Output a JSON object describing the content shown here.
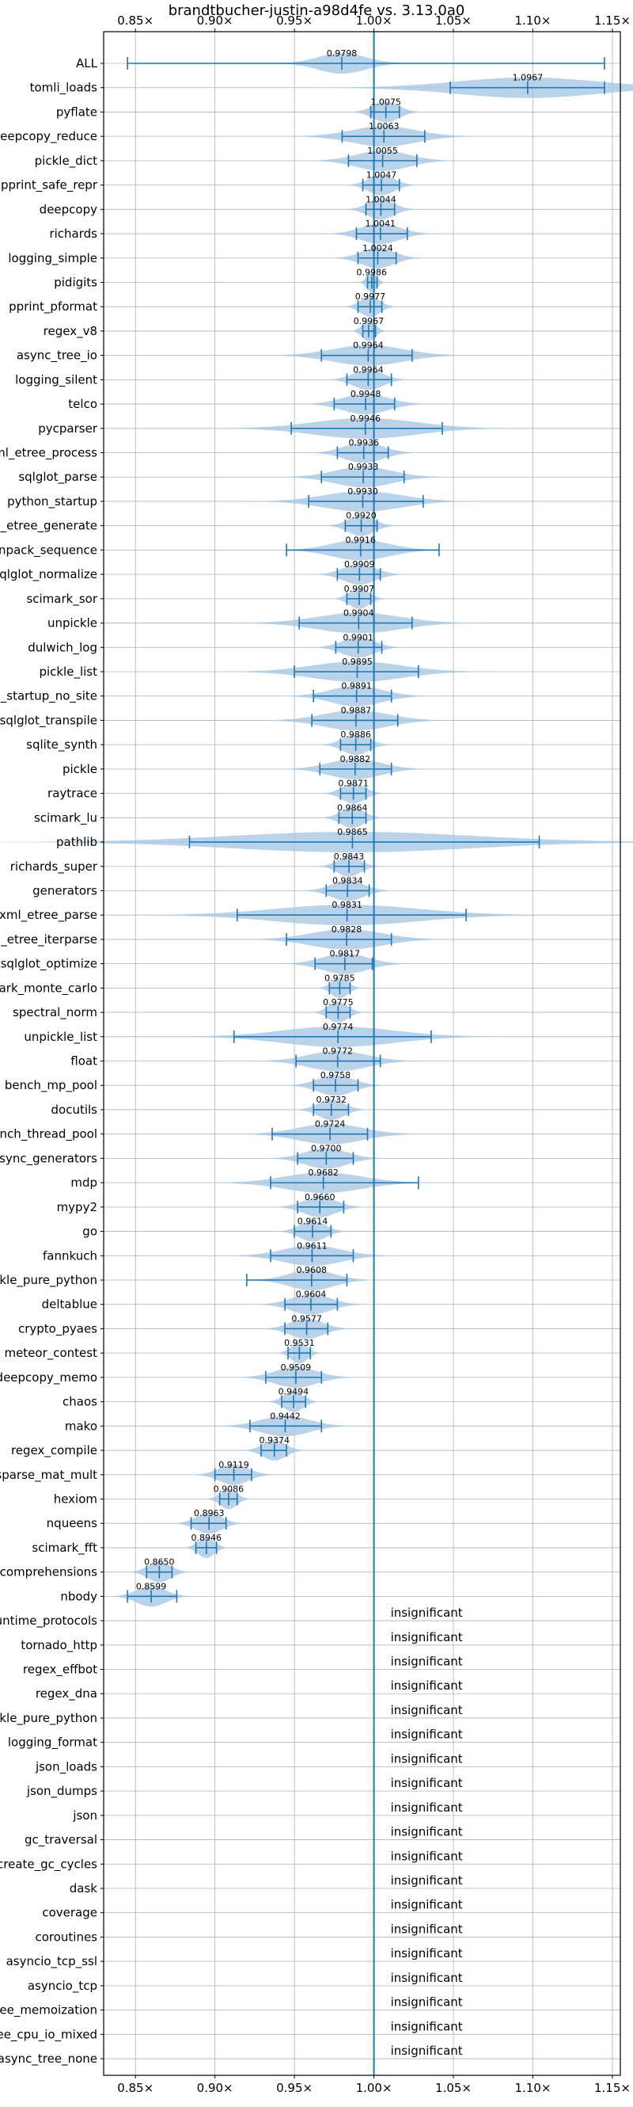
{
  "chart_data": {
    "type": "violin",
    "title": "brandtbucher-justin-a98d4fe vs. 3.13.0a0",
    "xlim": [
      0.83,
      1.155
    ],
    "x_ticks": [
      0.85,
      0.9,
      0.95,
      1.0,
      1.05,
      1.1,
      1.15
    ],
    "x_tick_labels": [
      "0.85×",
      "0.90×",
      "0.95×",
      "1.00×",
      "1.05×",
      "1.10×",
      "1.15×"
    ],
    "reference_line": 1.0,
    "grid": true,
    "colors": {
      "line": "#1f77b4",
      "violin": "#a9c8e4",
      "grid": "#b0b0b0"
    },
    "benchmarks": [
      {
        "name": "ALL",
        "mean": 0.9798,
        "min": 0.845,
        "max": 1.145,
        "spread": 0.015
      },
      {
        "name": "tomli_loads",
        "mean": 1.0967,
        "min": 1.048,
        "max": 1.145,
        "spread": 0.044
      },
      {
        "name": "pyflate",
        "mean": 1.0075,
        "min": 0.998,
        "max": 1.016,
        "spread": 0.008
      },
      {
        "name": "deepcopy_reduce",
        "mean": 1.0063,
        "min": 0.98,
        "max": 1.032,
        "spread": 0.02
      },
      {
        "name": "pickle_dict",
        "mean": 1.0055,
        "min": 0.984,
        "max": 1.027,
        "spread": 0.016
      },
      {
        "name": "pprint_safe_repr",
        "mean": 1.0047,
        "min": 0.993,
        "max": 1.016,
        "spread": 0.008
      },
      {
        "name": "deepcopy",
        "mean": 1.0044,
        "min": 0.995,
        "max": 1.013,
        "spread": 0.008
      },
      {
        "name": "richards",
        "mean": 1.0041,
        "min": 0.989,
        "max": 1.021,
        "spread": 0.012
      },
      {
        "name": "logging_simple",
        "mean": 1.0024,
        "min": 0.99,
        "max": 1.014,
        "spread": 0.01
      },
      {
        "name": "pidigits",
        "mean": 0.9986,
        "min": 0.996,
        "max": 1.002,
        "spread": 0.003
      },
      {
        "name": "pprint_pformat",
        "mean": 0.9977,
        "min": 0.99,
        "max": 1.005,
        "spread": 0.006
      },
      {
        "name": "regex_v8",
        "mean": 0.9967,
        "min": 0.993,
        "max": 1.001,
        "spread": 0.004
      },
      {
        "name": "async_tree_io",
        "mean": 0.9964,
        "min": 0.967,
        "max": 1.024,
        "spread": 0.022
      },
      {
        "name": "logging_silent",
        "mean": 0.9964,
        "min": 0.983,
        "max": 1.011,
        "spread": 0.009
      },
      {
        "name": "telco",
        "mean": 0.9948,
        "min": 0.975,
        "max": 1.013,
        "spread": 0.014
      },
      {
        "name": "pycparser",
        "mean": 0.9946,
        "min": 0.948,
        "max": 1.043,
        "spread": 0.032
      },
      {
        "name": "xml_etree_process",
        "mean": 0.9936,
        "min": 0.977,
        "max": 1.009,
        "spread": 0.012
      },
      {
        "name": "sqlglot_parse",
        "mean": 0.9933,
        "min": 0.967,
        "max": 1.019,
        "spread": 0.018
      },
      {
        "name": "python_startup",
        "mean": 0.993,
        "min": 0.959,
        "max": 1.031,
        "spread": 0.024
      },
      {
        "name": "xml_etree_generate",
        "mean": 0.992,
        "min": 0.982,
        "max": 1.002,
        "spread": 0.008
      },
      {
        "name": "unpack_sequence",
        "mean": 0.9916,
        "min": 0.945,
        "max": 1.041,
        "spread": 0.018
      },
      {
        "name": "sqlglot_normalize",
        "mean": 0.9909,
        "min": 0.977,
        "max": 1.004,
        "spread": 0.01
      },
      {
        "name": "scimark_sor",
        "mean": 0.9907,
        "min": 0.983,
        "max": 0.998,
        "spread": 0.006
      },
      {
        "name": "unpickle",
        "mean": 0.9904,
        "min": 0.953,
        "max": 1.024,
        "spread": 0.026
      },
      {
        "name": "dulwich_log",
        "mean": 0.9901,
        "min": 0.976,
        "max": 1.005,
        "spread": 0.01
      },
      {
        "name": "pickle_list",
        "mean": 0.9895,
        "min": 0.95,
        "max": 1.028,
        "spread": 0.028
      },
      {
        "name": "python_startup_no_site",
        "mean": 0.9891,
        "min": 0.962,
        "max": 1.011,
        "spread": 0.016
      },
      {
        "name": "sqlglot_transpile",
        "mean": 0.9887,
        "min": 0.961,
        "max": 1.015,
        "spread": 0.02
      },
      {
        "name": "sqlite_synth",
        "mean": 0.9886,
        "min": 0.979,
        "max": 0.998,
        "spread": 0.008
      },
      {
        "name": "pickle",
        "mean": 0.9882,
        "min": 0.966,
        "max": 1.011,
        "spread": 0.016
      },
      {
        "name": "raytrace",
        "mean": 0.9871,
        "min": 0.979,
        "max": 0.995,
        "spread": 0.007
      },
      {
        "name": "scimark_lu",
        "mean": 0.9864,
        "min": 0.978,
        "max": 0.995,
        "spread": 0.007
      },
      {
        "name": "pathlib",
        "mean": 0.9865,
        "min": 0.884,
        "max": 1.104,
        "spread": 0.075
      },
      {
        "name": "richards_super",
        "mean": 0.9843,
        "min": 0.975,
        "max": 0.994,
        "spread": 0.007
      },
      {
        "name": "generators",
        "mean": 0.9834,
        "min": 0.97,
        "max": 0.997,
        "spread": 0.01
      },
      {
        "name": "xml_etree_parse",
        "mean": 0.9831,
        "min": 0.914,
        "max": 1.058,
        "spread": 0.045
      },
      {
        "name": "xml_etree_iterparse",
        "mean": 0.9828,
        "min": 0.945,
        "max": 1.011,
        "spread": 0.022
      },
      {
        "name": "sqlglot_optimize",
        "mean": 0.9817,
        "min": 0.963,
        "max": 0.999,
        "spread": 0.014
      },
      {
        "name": "scimark_monte_carlo",
        "mean": 0.9785,
        "min": 0.972,
        "max": 0.985,
        "spread": 0.005
      },
      {
        "name": "spectral_norm",
        "mean": 0.9775,
        "min": 0.97,
        "max": 0.985,
        "spread": 0.006
      },
      {
        "name": "unpickle_list",
        "mean": 0.9774,
        "min": 0.912,
        "max": 1.036,
        "spread": 0.035
      },
      {
        "name": "float",
        "mean": 0.9772,
        "min": 0.951,
        "max": 1.004,
        "spread": 0.018
      },
      {
        "name": "bench_mp_pool",
        "mean": 0.9758,
        "min": 0.962,
        "max": 0.99,
        "spread": 0.011
      },
      {
        "name": "docutils",
        "mean": 0.9732,
        "min": 0.962,
        "max": 0.984,
        "spread": 0.008
      },
      {
        "name": "bench_thread_pool",
        "mean": 0.9724,
        "min": 0.936,
        "max": 0.996,
        "spread": 0.02
      },
      {
        "name": "async_generators",
        "mean": 0.97,
        "min": 0.952,
        "max": 0.987,
        "spread": 0.013
      },
      {
        "name": "mdp",
        "mean": 0.9682,
        "min": 0.935,
        "max": 1.028,
        "spread": 0.024
      },
      {
        "name": "mypy2",
        "mean": 0.966,
        "min": 0.952,
        "max": 0.981,
        "spread": 0.01
      },
      {
        "name": "go",
        "mean": 0.9614,
        "min": 0.95,
        "max": 0.973,
        "spread": 0.008
      },
      {
        "name": "fannkuch",
        "mean": 0.9611,
        "min": 0.935,
        "max": 0.987,
        "spread": 0.018
      },
      {
        "name": "unpickle_pure_python",
        "mean": 0.9608,
        "min": 0.92,
        "max": 0.983,
        "spread": 0.014
      },
      {
        "name": "deltablue",
        "mean": 0.9604,
        "min": 0.944,
        "max": 0.977,
        "spread": 0.012
      },
      {
        "name": "crypto_pyaes",
        "mean": 0.9577,
        "min": 0.944,
        "max": 0.971,
        "spread": 0.01
      },
      {
        "name": "meteor_contest",
        "mean": 0.9531,
        "min": 0.946,
        "max": 0.96,
        "spread": 0.005
      },
      {
        "name": "deepcopy_memo",
        "mean": 0.9509,
        "min": 0.932,
        "max": 0.967,
        "spread": 0.013
      },
      {
        "name": "chaos",
        "mean": 0.9494,
        "min": 0.942,
        "max": 0.957,
        "spread": 0.006
      },
      {
        "name": "mako",
        "mean": 0.9442,
        "min": 0.922,
        "max": 0.967,
        "spread": 0.015
      },
      {
        "name": "regex_compile",
        "mean": 0.9374,
        "min": 0.929,
        "max": 0.945,
        "spread": 0.007
      },
      {
        "name": "scimark_sparse_mat_mult",
        "mean": 0.9119,
        "min": 0.9,
        "max": 0.923,
        "spread": 0.009
      },
      {
        "name": "hexiom",
        "mean": 0.9086,
        "min": 0.903,
        "max": 0.914,
        "spread": 0.005
      },
      {
        "name": "nqueens",
        "mean": 0.8963,
        "min": 0.885,
        "max": 0.907,
        "spread": 0.008
      },
      {
        "name": "scimark_fft",
        "mean": 0.8946,
        "min": 0.888,
        "max": 0.901,
        "spread": 0.005
      },
      {
        "name": "comprehensions",
        "mean": 0.865,
        "min": 0.857,
        "max": 0.873,
        "spread": 0.007
      },
      {
        "name": "nbody",
        "mean": 0.8599,
        "min": 0.845,
        "max": 0.876,
        "spread": 0.009
      }
    ],
    "insignificant_label": "insignificant",
    "insignificant": [
      "typing_runtime_protocols",
      "tornado_http",
      "regex_effbot",
      "regex_dna",
      "pickle_pure_python",
      "logging_format",
      "json_loads",
      "json_dumps",
      "json",
      "gc_traversal",
      "create_gc_cycles",
      "dask",
      "coverage",
      "coroutines",
      "asyncio_tcp_ssl",
      "asyncio_tcp",
      "async_tree_memoization",
      "async_tree_cpu_io_mixed",
      "async_tree_none"
    ]
  }
}
